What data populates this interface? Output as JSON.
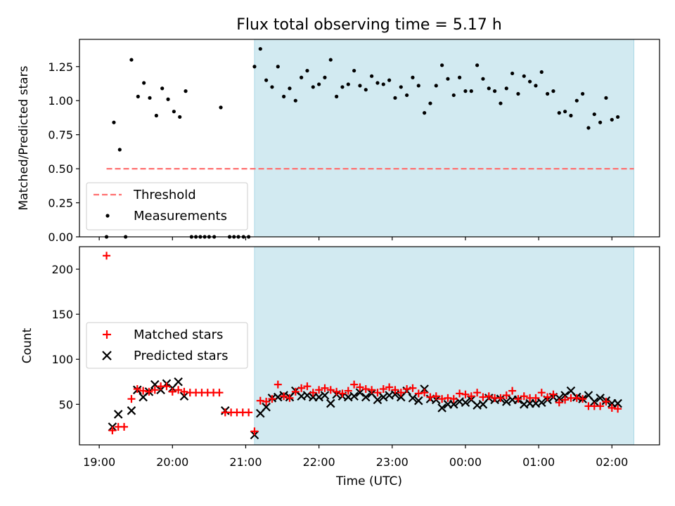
{
  "chart_data": {
    "type": "scatter",
    "title": "Flux total observing time = 5.17 h",
    "xlabel": "Time (UTC)",
    "x_unit": "hours since 19:00 UTC",
    "xlim": [
      -0.27,
      7.65
    ],
    "xticks": [
      {
        "value": 0,
        "label": "19:00"
      },
      {
        "value": 1,
        "label": "20:00"
      },
      {
        "value": 2,
        "label": "21:00"
      },
      {
        "value": 3,
        "label": "22:00"
      },
      {
        "value": 4,
        "label": "23:00"
      },
      {
        "value": 5,
        "label": "00:00"
      },
      {
        "value": 6,
        "label": "01:00"
      },
      {
        "value": 7,
        "label": "02:00"
      }
    ],
    "observing_window": {
      "start": 2.12,
      "end": 7.3,
      "color": "#add8e6"
    },
    "colors": {
      "threshold": "#ff7070",
      "measurements": "#000000",
      "matched": "#ff0000",
      "predicted": "#000000",
      "frame": "#000000"
    },
    "top_panel": {
      "ylabel": "Matched/Predicted stars",
      "ylim": [
        0,
        1.45
      ],
      "yticks": [
        {
          "value": 0,
          "label": "0.00"
        },
        {
          "value": 0.25,
          "label": "0.25"
        },
        {
          "value": 0.5,
          "label": "0.50"
        },
        {
          "value": 0.75,
          "label": "0.75"
        },
        {
          "value": 1.0,
          "label": "1.00"
        },
        {
          "value": 1.25,
          "label": "1.25"
        }
      ],
      "threshold": {
        "value": 0.5,
        "x_start": 0.1,
        "x_end": 7.3
      },
      "legend": {
        "position": "lower-left",
        "threshold_label": "Threshold",
        "measurements_label": "Measurements"
      },
      "measurements": [
        [
          0.1,
          0.0
        ],
        [
          0.2,
          0.84
        ],
        [
          0.28,
          0.64
        ],
        [
          0.36,
          0.0
        ],
        [
          0.44,
          1.3
        ],
        [
          0.53,
          1.03
        ],
        [
          0.61,
          1.13
        ],
        [
          0.69,
          1.02
        ],
        [
          0.78,
          0.89
        ],
        [
          0.86,
          1.09
        ],
        [
          0.94,
          1.01
        ],
        [
          1.02,
          0.92
        ],
        [
          1.1,
          0.88
        ],
        [
          1.18,
          1.07
        ],
        [
          1.26,
          0.0
        ],
        [
          1.32,
          0.0
        ],
        [
          1.38,
          0.0
        ],
        [
          1.44,
          0.0
        ],
        [
          1.5,
          0.0
        ],
        [
          1.57,
          0.0
        ],
        [
          1.66,
          0.95
        ],
        [
          1.78,
          0.0
        ],
        [
          1.84,
          0.0
        ],
        [
          1.9,
          0.0
        ],
        [
          1.97,
          0.0
        ],
        [
          2.04,
          0.0
        ],
        [
          2.12,
          1.25
        ],
        [
          2.2,
          1.38
        ],
        [
          2.28,
          1.15
        ],
        [
          2.36,
          1.1
        ],
        [
          2.44,
          1.25
        ],
        [
          2.52,
          1.03
        ],
        [
          2.6,
          1.09
        ],
        [
          2.68,
          1.0
        ],
        [
          2.76,
          1.17
        ],
        [
          2.84,
          1.22
        ],
        [
          2.92,
          1.1
        ],
        [
          3.0,
          1.12
        ],
        [
          3.08,
          1.17
        ],
        [
          3.16,
          1.3
        ],
        [
          3.24,
          1.03
        ],
        [
          3.32,
          1.1
        ],
        [
          3.4,
          1.12
        ],
        [
          3.48,
          1.22
        ],
        [
          3.56,
          1.11
        ],
        [
          3.64,
          1.08
        ],
        [
          3.72,
          1.18
        ],
        [
          3.8,
          1.13
        ],
        [
          3.88,
          1.12
        ],
        [
          3.96,
          1.15
        ],
        [
          4.04,
          1.02
        ],
        [
          4.12,
          1.1
        ],
        [
          4.2,
          1.04
        ],
        [
          4.28,
          1.17
        ],
        [
          4.36,
          1.11
        ],
        [
          4.44,
          0.91
        ],
        [
          4.52,
          0.98
        ],
        [
          4.6,
          1.11
        ],
        [
          4.68,
          1.26
        ],
        [
          4.76,
          1.16
        ],
        [
          4.84,
          1.04
        ],
        [
          4.92,
          1.17
        ],
        [
          5.0,
          1.07
        ],
        [
          5.08,
          1.07
        ],
        [
          5.16,
          1.26
        ],
        [
          5.24,
          1.16
        ],
        [
          5.32,
          1.09
        ],
        [
          5.4,
          1.07
        ],
        [
          5.48,
          0.98
        ],
        [
          5.56,
          1.09
        ],
        [
          5.64,
          1.2
        ],
        [
          5.72,
          1.05
        ],
        [
          5.8,
          1.18
        ],
        [
          5.88,
          1.14
        ],
        [
          5.96,
          1.11
        ],
        [
          6.04,
          1.21
        ],
        [
          6.12,
          1.05
        ],
        [
          6.2,
          1.07
        ],
        [
          6.28,
          0.91
        ],
        [
          6.36,
          0.92
        ],
        [
          6.44,
          0.89
        ],
        [
          6.52,
          1.0
        ],
        [
          6.6,
          1.05
        ],
        [
          6.68,
          0.8
        ],
        [
          6.76,
          0.9
        ],
        [
          6.84,
          0.84
        ],
        [
          6.92,
          1.02
        ],
        [
          7.0,
          0.86
        ],
        [
          7.08,
          0.88
        ]
      ]
    },
    "bottom_panel": {
      "ylabel": "Count",
      "ylim": [
        5,
        225
      ],
      "yticks": [
        {
          "value": 50,
          "label": "50"
        },
        {
          "value": 100,
          "label": "100"
        },
        {
          "value": 150,
          "label": "150"
        },
        {
          "value": 200,
          "label": "200"
        }
      ],
      "legend": {
        "position": "center-left",
        "matched_label": "Matched stars",
        "predicted_label": "Predicted stars"
      },
      "matched": [
        [
          0.1,
          215
        ],
        [
          0.18,
          21
        ],
        [
          0.26,
          25
        ],
        [
          0.34,
          25
        ],
        [
          0.44,
          56
        ],
        [
          0.52,
          67
        ],
        [
          0.6,
          65
        ],
        [
          0.68,
          64
        ],
        [
          0.76,
          66
        ],
        [
          0.84,
          70
        ],
        [
          0.92,
          70
        ],
        [
          1.0,
          64
        ],
        [
          1.08,
          66
        ],
        [
          1.16,
          64
        ],
        [
          1.24,
          63
        ],
        [
          1.32,
          63
        ],
        [
          1.4,
          63
        ],
        [
          1.48,
          63
        ],
        [
          1.56,
          63
        ],
        [
          1.64,
          63
        ],
        [
          1.72,
          41
        ],
        [
          1.8,
          41
        ],
        [
          1.88,
          41
        ],
        [
          1.96,
          41
        ],
        [
          2.04,
          41
        ],
        [
          2.12,
          20
        ],
        [
          2.2,
          54
        ],
        [
          2.28,
          53
        ],
        [
          2.36,
          56
        ],
        [
          2.44,
          72
        ],
        [
          2.52,
          59
        ],
        [
          2.6,
          57
        ],
        [
          2.68,
          64
        ],
        [
          2.76,
          68
        ],
        [
          2.84,
          70
        ],
        [
          2.92,
          63
        ],
        [
          3.0,
          66
        ],
        [
          3.08,
          68
        ],
        [
          3.16,
          66
        ],
        [
          3.24,
          64
        ],
        [
          3.32,
          62
        ],
        [
          3.4,
          65
        ],
        [
          3.48,
          72
        ],
        [
          3.56,
          69
        ],
        [
          3.64,
          67
        ],
        [
          3.72,
          66
        ],
        [
          3.8,
          63
        ],
        [
          3.88,
          67
        ],
        [
          3.96,
          69
        ],
        [
          4.04,
          66
        ],
        [
          4.12,
          63
        ],
        [
          4.2,
          67
        ],
        [
          4.28,
          68
        ],
        [
          4.36,
          62
        ],
        [
          4.44,
          63
        ],
        [
          4.52,
          58
        ],
        [
          4.6,
          59
        ],
        [
          4.68,
          56
        ],
        [
          4.76,
          57
        ],
        [
          4.84,
          56
        ],
        [
          4.92,
          62
        ],
        [
          5.0,
          61
        ],
        [
          5.08,
          59
        ],
        [
          5.16,
          63
        ],
        [
          5.24,
          58
        ],
        [
          5.32,
          59
        ],
        [
          5.4,
          57
        ],
        [
          5.48,
          57
        ],
        [
          5.56,
          60
        ],
        [
          5.64,
          65
        ],
        [
          5.72,
          56
        ],
        [
          5.8,
          59
        ],
        [
          5.88,
          57
        ],
        [
          5.96,
          57
        ],
        [
          6.04,
          63
        ],
        [
          6.12,
          58
        ],
        [
          6.2,
          61
        ],
        [
          6.28,
          52
        ],
        [
          6.36,
          55
        ],
        [
          6.44,
          57
        ],
        [
          6.52,
          57
        ],
        [
          6.6,
          56
        ],
        [
          6.68,
          48
        ],
        [
          6.76,
          48
        ],
        [
          6.84,
          48
        ],
        [
          6.92,
          53
        ],
        [
          7.0,
          46
        ],
        [
          7.08,
          45
        ]
      ],
      "predicted": [
        [
          0.18,
          25
        ],
        [
          0.26,
          39
        ],
        [
          0.44,
          43
        ],
        [
          0.52,
          66
        ],
        [
          0.6,
          58
        ],
        [
          0.68,
          64
        ],
        [
          0.76,
          72
        ],
        [
          0.84,
          66
        ],
        [
          0.92,
          73
        ],
        [
          1.0,
          68
        ],
        [
          1.08,
          75
        ],
        [
          1.16,
          59
        ],
        [
          1.72,
          43
        ],
        [
          2.12,
          16
        ],
        [
          2.2,
          40
        ],
        [
          2.28,
          47
        ],
        [
          2.36,
          57
        ],
        [
          2.44,
          58
        ],
        [
          2.52,
          60
        ],
        [
          2.6,
          58
        ],
        [
          2.68,
          65
        ],
        [
          2.76,
          59
        ],
        [
          2.84,
          60
        ],
        [
          2.92,
          58
        ],
        [
          3.0,
          58
        ],
        [
          3.08,
          60
        ],
        [
          3.16,
          51
        ],
        [
          3.24,
          61
        ],
        [
          3.32,
          59
        ],
        [
          3.4,
          58
        ],
        [
          3.48,
          59
        ],
        [
          3.56,
          63
        ],
        [
          3.64,
          58
        ],
        [
          3.72,
          62
        ],
        [
          3.8,
          55
        ],
        [
          3.88,
          58
        ],
        [
          3.96,
          60
        ],
        [
          4.04,
          61
        ],
        [
          4.12,
          58
        ],
        [
          4.2,
          65
        ],
        [
          4.28,
          57
        ],
        [
          4.36,
          54
        ],
        [
          4.44,
          67
        ],
        [
          4.52,
          56
        ],
        [
          4.6,
          55
        ],
        [
          4.68,
          46
        ],
        [
          4.76,
          50
        ],
        [
          4.84,
          50
        ],
        [
          4.92,
          53
        ],
        [
          5.0,
          52
        ],
        [
          5.08,
          55
        ],
        [
          5.16,
          49
        ],
        [
          5.24,
          50
        ],
        [
          5.32,
          57
        ],
        [
          5.4,
          55
        ],
        [
          5.48,
          56
        ],
        [
          5.56,
          53
        ],
        [
          5.64,
          55
        ],
        [
          5.72,
          55
        ],
        [
          5.8,
          50
        ],
        [
          5.88,
          51
        ],
        [
          5.96,
          51
        ],
        [
          6.04,
          52
        ],
        [
          6.12,
          55
        ],
        [
          6.2,
          58
        ],
        [
          6.28,
          57
        ],
        [
          6.36,
          60
        ],
        [
          6.44,
          65
        ],
        [
          6.52,
          58
        ],
        [
          6.6,
          56
        ],
        [
          6.68,
          60
        ],
        [
          6.76,
          53
        ],
        [
          6.84,
          57
        ],
        [
          6.92,
          54
        ],
        [
          7.0,
          51
        ],
        [
          7.08,
          51
        ]
      ]
    }
  }
}
